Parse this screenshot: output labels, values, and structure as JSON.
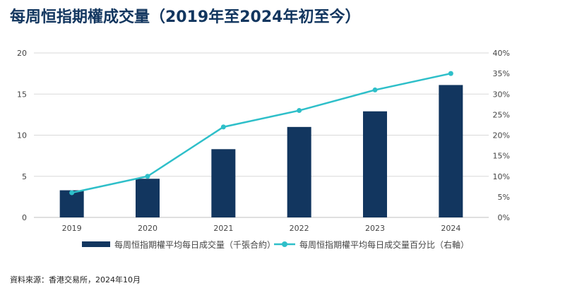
{
  "title": "每周恒指期權成交量（2019年至2024年初至今）",
  "source": "資料來源：香港交易所，2024年10月",
  "colors": {
    "bar": "#12365f",
    "line": "#2ebfc9",
    "grid": "#d9d9d9",
    "axis": "#bfbfbf"
  },
  "chart_data": {
    "type": "bar",
    "title": "每周恒指期權成交量（2019年至2024年初至今）",
    "categories": [
      "2019",
      "2020",
      "2021",
      "2022",
      "2023",
      "2024"
    ],
    "series": [
      {
        "name": "每周恒指期權平均每日成交量（千張合約）",
        "type": "bar",
        "axis": "left",
        "values": [
          3.3,
          4.7,
          8.3,
          11.0,
          12.9,
          16.1
        ]
      },
      {
        "name": "每周恒指期權平均每日成交量百分比（右軸）",
        "type": "line",
        "axis": "right",
        "values": [
          6,
          10,
          22,
          26,
          31,
          35
        ]
      }
    ],
    "y_left": {
      "min": 0,
      "max": 20,
      "ticks": [
        0,
        5,
        10,
        15,
        20
      ]
    },
    "y_right": {
      "min": 0,
      "max": 40,
      "ticks": [
        "0%",
        "5%",
        "10%",
        "15%",
        "20%",
        "25%",
        "30%",
        "35%",
        "40%"
      ]
    },
    "grid": true,
    "legend": "bottom"
  }
}
